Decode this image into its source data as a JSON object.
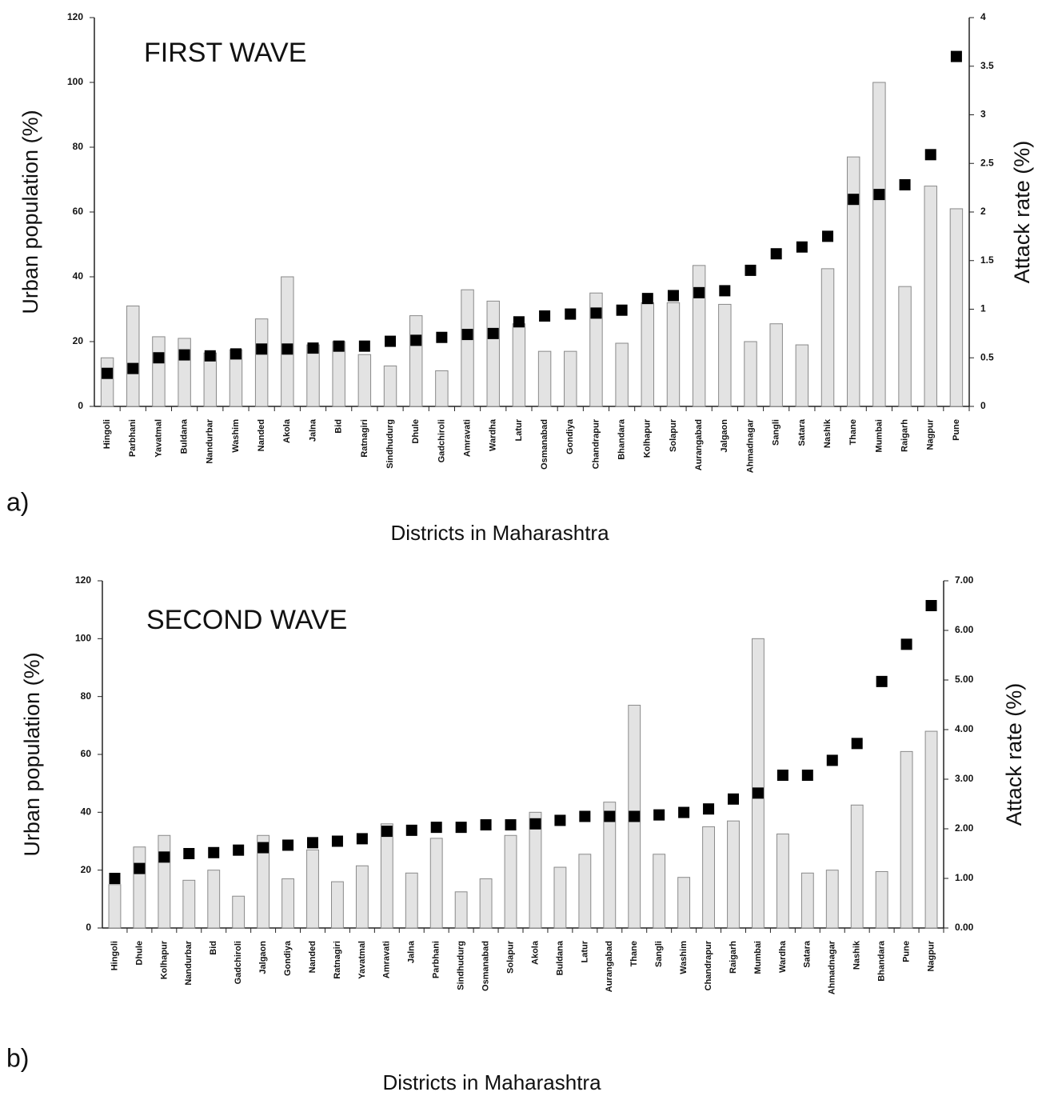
{
  "chart_data": [
    {
      "type": "bar",
      "title": "FIRST WAVE",
      "panel_label": "a)",
      "x_label": "Districts in Maharashtra",
      "y_label": "Urban population (%)",
      "y2_label": "Attack rate (%)",
      "categories": [
        "Hingoli",
        "Parbhani",
        "Yavatmal",
        "Buldana",
        "Nandurbar",
        "Washim",
        "Nanded",
        "Akola",
        "Jalna",
        "Bid",
        "Ratnagiri",
        "Sindhudurg",
        "Dhule",
        "Gadchiroli",
        "Amravati",
        "Wardha",
        "Latur",
        "Osmanabad",
        "Gondiya",
        "Chandrapur",
        "Bhandara",
        "Kolhapur",
        "Solapur",
        "Aurangabad",
        "Jalgaon",
        "Ahmadnagar",
        "Sangli",
        "Satara",
        "Nashik",
        "Thane",
        "Mumbai",
        "Raigarh",
        "Nagpur",
        "Pune"
      ],
      "series": [
        {
          "type": "bar",
          "color": "#e3e3e3",
          "values": [
            15,
            31,
            21.5,
            21,
            16.5,
            17.5,
            27,
            40,
            19,
            20,
            16,
            12.5,
            28,
            11,
            36,
            32.5,
            25.5,
            17,
            17,
            35,
            19.5,
            32,
            32,
            43.5,
            31.5,
            20,
            25.5,
            19,
            42.5,
            77,
            100,
            37,
            68,
            61
          ]
        },
        {
          "type": "scatter",
          "axis": "y2",
          "color": "#000000",
          "values": [
            0.34,
            0.39,
            0.5,
            0.53,
            0.52,
            0.54,
            0.59,
            0.59,
            0.6,
            0.62,
            0.62,
            0.67,
            0.68,
            0.71,
            0.74,
            0.75,
            0.87,
            0.93,
            0.95,
            0.96,
            0.99,
            1.11,
            1.14,
            1.17,
            1.19,
            1.4,
            1.57,
            1.64,
            1.75,
            2.13,
            2.18,
            2.28,
            2.59,
            3.6
          ]
        }
      ],
      "ylim": [
        0,
        120
      ],
      "yticks": [
        0,
        20,
        40,
        60,
        80,
        100,
        120
      ],
      "y2lim": [
        0,
        4
      ],
      "y2ticks": [
        0,
        0.5,
        1,
        1.5,
        2,
        2.5,
        3,
        3.5,
        4
      ],
      "grid": false
    },
    {
      "type": "bar",
      "title": "SECOND WAVE",
      "panel_label": "b)",
      "x_label": "Districts in Maharashtra",
      "y_label": "Urban population (%)",
      "y2_label": "Attack  rate (%)",
      "categories": [
        "Hingoli",
        "Dhule",
        "Kolhapur",
        "Nandurbar",
        "Bid",
        "Gadchiroli",
        "Jalgaon",
        "Gondiya",
        "Nanded",
        "Ratnagiri",
        "Yavatmal",
        "Amravati",
        "Jalna",
        "Parbhani",
        "Sindhudurg",
        "Osmanabad",
        "Solapur",
        "Akola",
        "Buldana",
        "Latur",
        "Aurangabad",
        "Thane",
        "Sangli",
        "Washim",
        "Chandrapur",
        "Raigarh",
        "Mumbai",
        "Wardha",
        "Satara",
        "Ahmadnagar",
        "Nashik",
        "Bhandara",
        "Pune",
        "Nagpur"
      ],
      "series": [
        {
          "type": "bar",
          "color": "#e3e3e3",
          "values": [
            15,
            28,
            32,
            16.5,
            20,
            11,
            32,
            17,
            27,
            16,
            21.5,
            36,
            19,
            31,
            12.5,
            17,
            32,
            40,
            21,
            25.5,
            43.5,
            77,
            25.5,
            17.5,
            35,
            37,
            100,
            32.5,
            19,
            20,
            42.5,
            19.5,
            61,
            68
          ]
        },
        {
          "type": "scatter",
          "axis": "y2",
          "color": "#000000",
          "values": [
            1.0,
            1.2,
            1.43,
            1.5,
            1.52,
            1.57,
            1.62,
            1.67,
            1.72,
            1.75,
            1.8,
            1.95,
            1.97,
            2.03,
            2.03,
            2.08,
            2.08,
            2.1,
            2.17,
            2.25,
            2.25,
            2.25,
            2.28,
            2.33,
            2.4,
            2.6,
            2.72,
            3.08,
            3.08,
            3.38,
            3.72,
            4.97,
            5.72,
            6.5
          ]
        }
      ],
      "ylim": [
        0,
        120
      ],
      "yticks": [
        0,
        20,
        40,
        60,
        80,
        100,
        120
      ],
      "y2lim": [
        0,
        7
      ],
      "y2ticks": [
        {
          "value": 0,
          "label": "0.00"
        },
        {
          "value": 1,
          "label": "1.00"
        },
        {
          "value": 2,
          "label": "2.00"
        },
        {
          "value": 3,
          "label": "3.00"
        },
        {
          "value": 4,
          "label": "4.00"
        },
        {
          "value": 5,
          "label": "5.00"
        },
        {
          "value": 6,
          "label": "6.00"
        },
        {
          "value": 7,
          "label": "7.00"
        }
      ],
      "grid": false
    }
  ]
}
